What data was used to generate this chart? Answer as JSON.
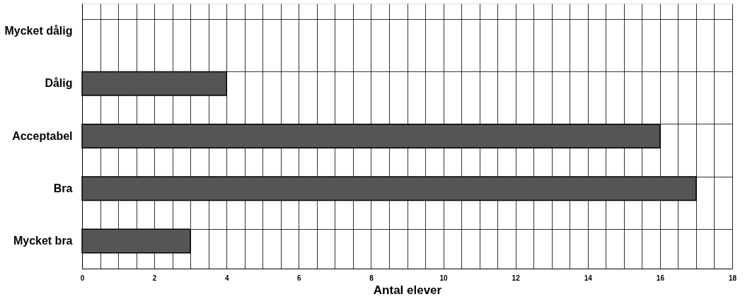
{
  "chart_data": {
    "type": "bar",
    "orientation": "horizontal",
    "xlabel": "Antal elever",
    "categories": [
      "Mycket dålig",
      "Dålig",
      "Acceptabel",
      "Bra",
      "Mycket bra"
    ],
    "values": [
      0,
      4,
      16,
      17,
      3
    ],
    "color": "#555555",
    "xlim": [
      0,
      18
    ],
    "xticks": [
      0,
      {
        "value": 0.5,
        "label": null
      },
      {
        "value": 1,
        "label": null
      },
      {
        "value": 1.5,
        "label": null
      },
      2,
      {
        "value": 2.5,
        "label": null
      },
      {
        "value": 3,
        "label": null
      },
      {
        "value": 3.5,
        "label": null
      },
      4,
      {
        "value": 4.5,
        "label": null
      },
      {
        "value": 5,
        "label": null
      },
      {
        "value": 5.5,
        "label": null
      },
      6,
      {
        "value": 6.5,
        "label": null
      },
      {
        "value": 7,
        "label": null
      },
      {
        "value": 7.5,
        "label": null
      },
      8,
      {
        "value": 8.5,
        "label": null
      },
      {
        "value": 9,
        "label": null
      },
      {
        "value": 9.5,
        "label": null
      },
      10,
      {
        "value": 10.5,
        "label": null
      },
      {
        "value": 11,
        "label": null
      },
      {
        "value": 11.5,
        "label": null
      },
      12,
      {
        "value": 12.5,
        "label": null
      },
      {
        "value": 13,
        "label": null
      },
      {
        "value": 13.5,
        "label": null
      },
      14,
      {
        "value": 14.5,
        "label": null
      },
      {
        "value": 15,
        "label": null
      },
      {
        "value": 15.5,
        "label": null
      },
      16,
      {
        "value": 16.5,
        "label": null
      },
      {
        "value": 17,
        "label": null
      },
      {
        "value": 17.5,
        "label": null
      },
      18
    ],
    "grid": true
  }
}
